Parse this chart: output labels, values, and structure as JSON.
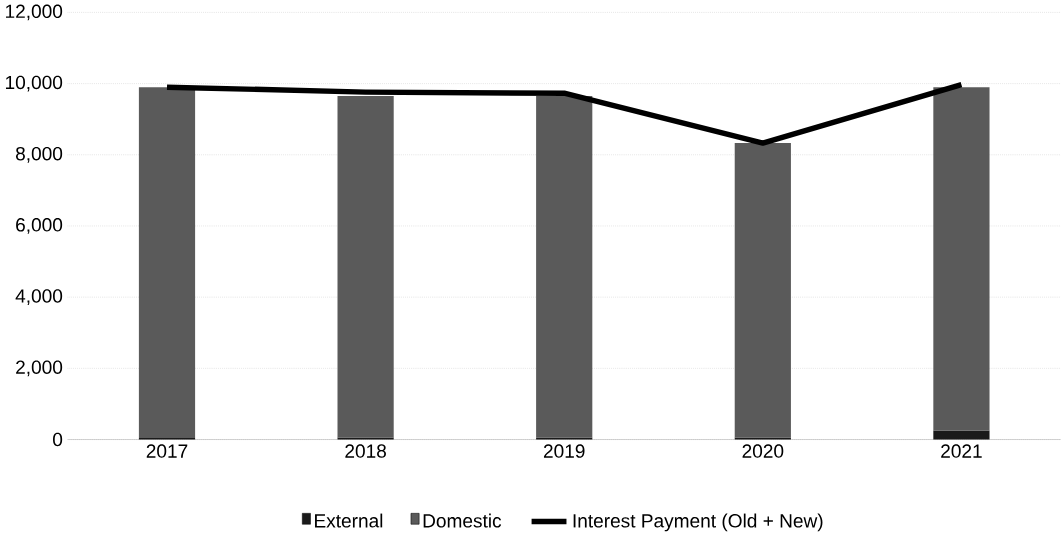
{
  "chart_data": {
    "type": "bar",
    "stacked": true,
    "categories": [
      "2017",
      "2018",
      "2019",
      "2020",
      "2021"
    ],
    "series": [
      {
        "name": "External",
        "color": "#1a1a1a",
        "values": [
          40,
          60,
          60,
          60,
          250
        ]
      },
      {
        "name": "Domestic",
        "color": "#5a5a5a",
        "values": [
          9860,
          9590,
          9590,
          8270,
          9650
        ]
      },
      {
        "name": "Interest Payment (Old + New)",
        "type": "line",
        "color": "#000000",
        "values": [
          9900,
          9760,
          9730,
          8330,
          9970
        ]
      }
    ],
    "ylim": [
      0,
      12000
    ],
    "yticks": [
      {
        "value": 0,
        "label": "0"
      },
      {
        "value": 2000,
        "label": "2,000"
      },
      {
        "value": 4000,
        "label": "4,000"
      },
      {
        "value": 6000,
        "label": "6,000"
      },
      {
        "value": 8000,
        "label": "8,000"
      },
      {
        "value": 10000,
        "label": "10,000"
      },
      {
        "value": 12000,
        "label": "12,000"
      }
    ],
    "grid": "y",
    "legend": "bottom",
    "marker": "none",
    "line_style": "solid"
  }
}
